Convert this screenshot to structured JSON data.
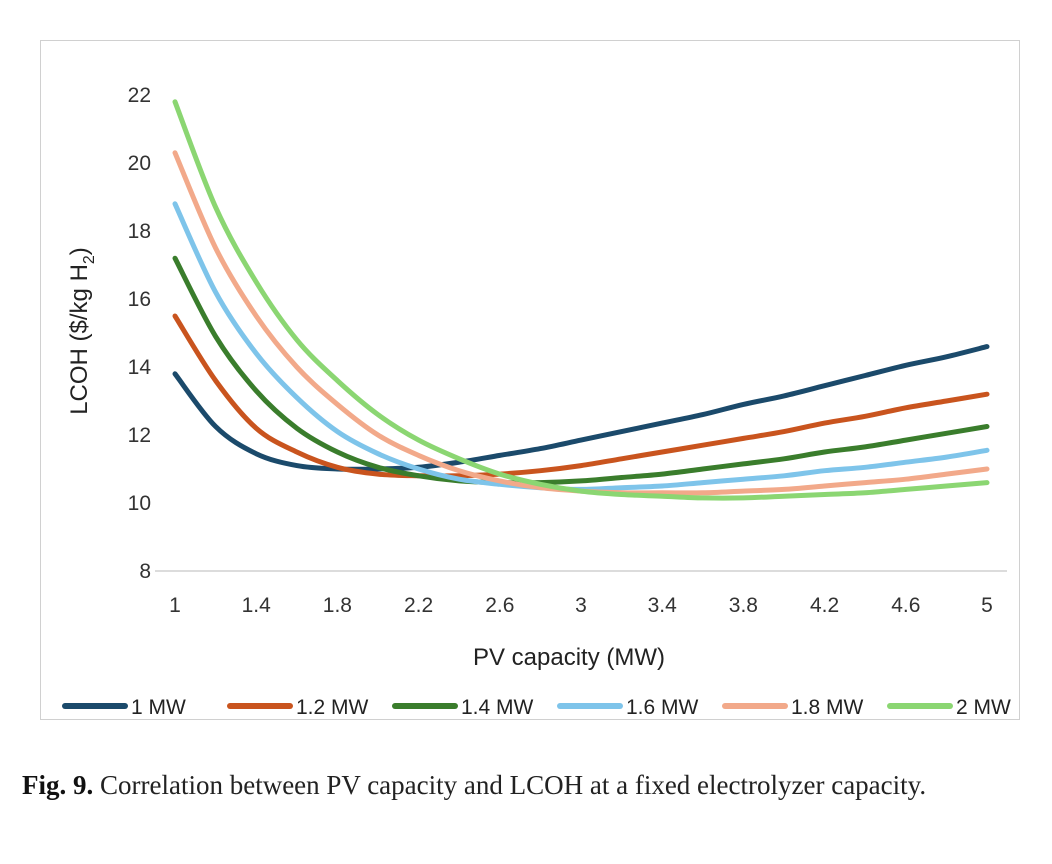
{
  "chart_data": {
    "type": "line",
    "xlabel": "PV capacity (MW)",
    "ylabel_main": "LCOH ($/kg H",
    "ylabel_sub": "2",
    "ylabel_close": ")",
    "xlim": [
      1,
      5
    ],
    "ylim": [
      8,
      22
    ],
    "x_ticks": [
      "1",
      "1.4",
      "1.8",
      "2.2",
      "2.6",
      "3",
      "3.4",
      "3.8",
      "4.2",
      "4.6",
      "5"
    ],
    "y_ticks": [
      "8",
      "10",
      "12",
      "14",
      "16",
      "18",
      "20",
      "22"
    ],
    "grid": false,
    "legend_position": "bottom",
    "x": [
      1,
      1.2,
      1.4,
      1.6,
      1.8,
      2.0,
      2.2,
      2.4,
      2.6,
      2.8,
      3.0,
      3.2,
      3.4,
      3.6,
      3.8,
      4.0,
      4.2,
      4.4,
      4.6,
      4.8,
      5.0
    ],
    "series": [
      {
        "name": "1 MW",
        "color": "#1b4a6b",
        "values": [
          13.8,
          12.25,
          11.45,
          11.1,
          11.0,
          11.0,
          11.05,
          11.2,
          11.4,
          11.6,
          11.85,
          12.1,
          12.35,
          12.6,
          12.9,
          13.15,
          13.45,
          13.75,
          14.05,
          14.3,
          14.6
        ]
      },
      {
        "name": "1.2 MW",
        "color": "#c9541e",
        "values": [
          15.5,
          13.6,
          12.2,
          11.5,
          11.05,
          10.85,
          10.8,
          10.8,
          10.85,
          10.95,
          11.1,
          11.3,
          11.5,
          11.7,
          11.9,
          12.1,
          12.35,
          12.55,
          12.8,
          13.0,
          13.2
        ]
      },
      {
        "name": "1.4 MW",
        "color": "#3a7d2c",
        "values": [
          17.2,
          14.9,
          13.3,
          12.2,
          11.5,
          11.05,
          10.8,
          10.65,
          10.6,
          10.6,
          10.65,
          10.75,
          10.85,
          11.0,
          11.15,
          11.3,
          11.5,
          11.65,
          11.85,
          12.05,
          12.25
        ]
      },
      {
        "name": "1.6 MW",
        "color": "#7ec4ea",
        "values": [
          18.8,
          16.2,
          14.4,
          13.1,
          12.1,
          11.45,
          11.0,
          10.7,
          10.55,
          10.45,
          10.4,
          10.45,
          10.5,
          10.6,
          10.7,
          10.8,
          10.95,
          11.05,
          11.2,
          11.35,
          11.55
        ]
      },
      {
        "name": "1.8 MW",
        "color": "#f2a98a",
        "values": [
          20.3,
          17.5,
          15.5,
          14.0,
          12.9,
          12.0,
          11.4,
          10.95,
          10.65,
          10.45,
          10.35,
          10.3,
          10.3,
          10.3,
          10.35,
          10.4,
          10.5,
          10.6,
          10.7,
          10.85,
          11.0
        ]
      },
      {
        "name": "2 MW",
        "color": "#8bd672",
        "values": [
          21.8,
          18.7,
          16.5,
          14.8,
          13.6,
          12.6,
          11.85,
          11.3,
          10.85,
          10.55,
          10.35,
          10.25,
          10.2,
          10.15,
          10.15,
          10.2,
          10.25,
          10.3,
          10.4,
          10.5,
          10.6
        ]
      }
    ]
  },
  "caption": {
    "label": "Fig. 9.",
    "text": "Correlation between PV capacity and LCOH at a fixed electrolyzer capacity."
  }
}
